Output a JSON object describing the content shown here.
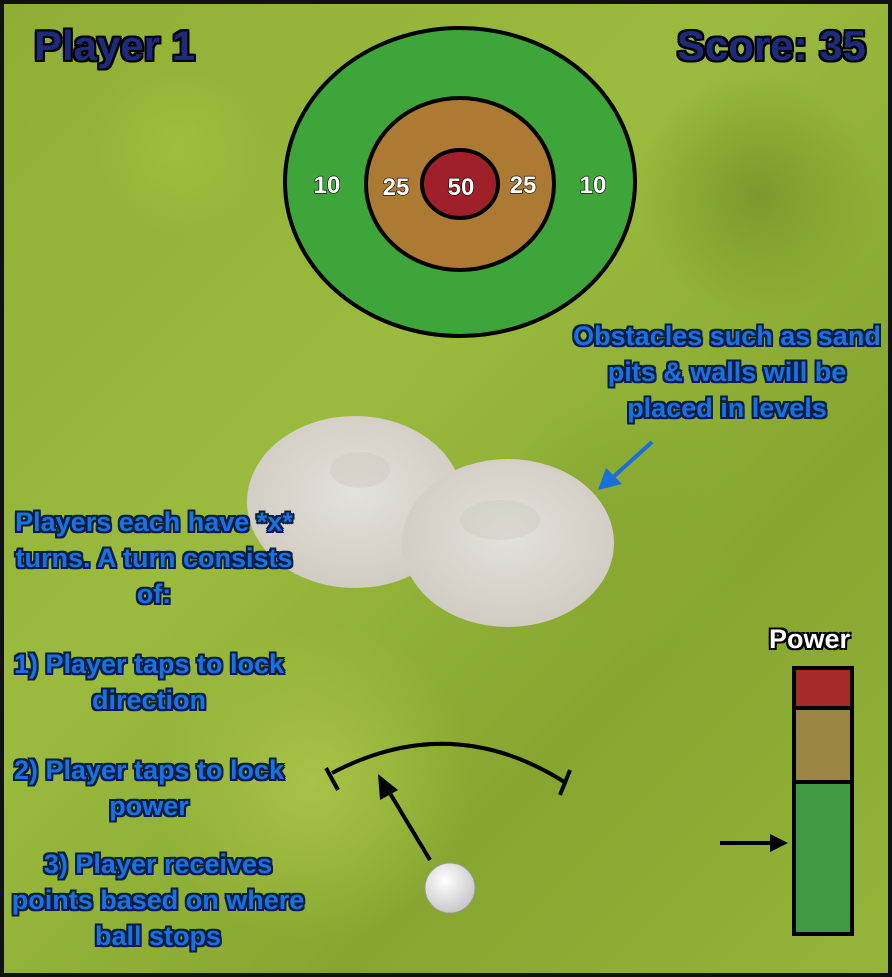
{
  "hud": {
    "player_label": "Player 1",
    "score_label": "Score: 35"
  },
  "target": {
    "rings": [
      {
        "name": "outer",
        "points": "10",
        "color": "#3ea53a"
      },
      {
        "name": "middle",
        "points": "25",
        "color": "#ad7a34"
      },
      {
        "name": "bullseye",
        "points": "50",
        "color": "#a0202a"
      }
    ],
    "labels": {
      "outer_left": "10",
      "middle_left": "25",
      "center": "50",
      "middle_right": "25",
      "outer_right": "10"
    }
  },
  "notes": {
    "obstacles": "Obstacles such as sand pits & walls will be placed in levels",
    "turns": "Players each have *x* turns. A turn consists of:",
    "step1": "1) Player taps to lock direction",
    "step2": "2) Player taps to lock power",
    "step3": "3) Player receives points based on where ball stops"
  },
  "power_meter": {
    "label": "Power",
    "segments": [
      {
        "name": "high",
        "color": "#a52a2a"
      },
      {
        "name": "medium",
        "color": "#9c8443"
      },
      {
        "name": "low",
        "color": "#3f9a45"
      }
    ]
  },
  "colors": {
    "sand": "#d9d6cf",
    "ball": "#f4f4f4",
    "note_text": "#1a72e0",
    "pointer": "#1a6fd8"
  },
  "icons": {
    "ball": "golf-ball-icon",
    "aim_arrow": "aim-arrow-icon",
    "power_arrow": "power-indicator-arrow-icon",
    "note_arrow": "pointer-arrow-icon"
  }
}
